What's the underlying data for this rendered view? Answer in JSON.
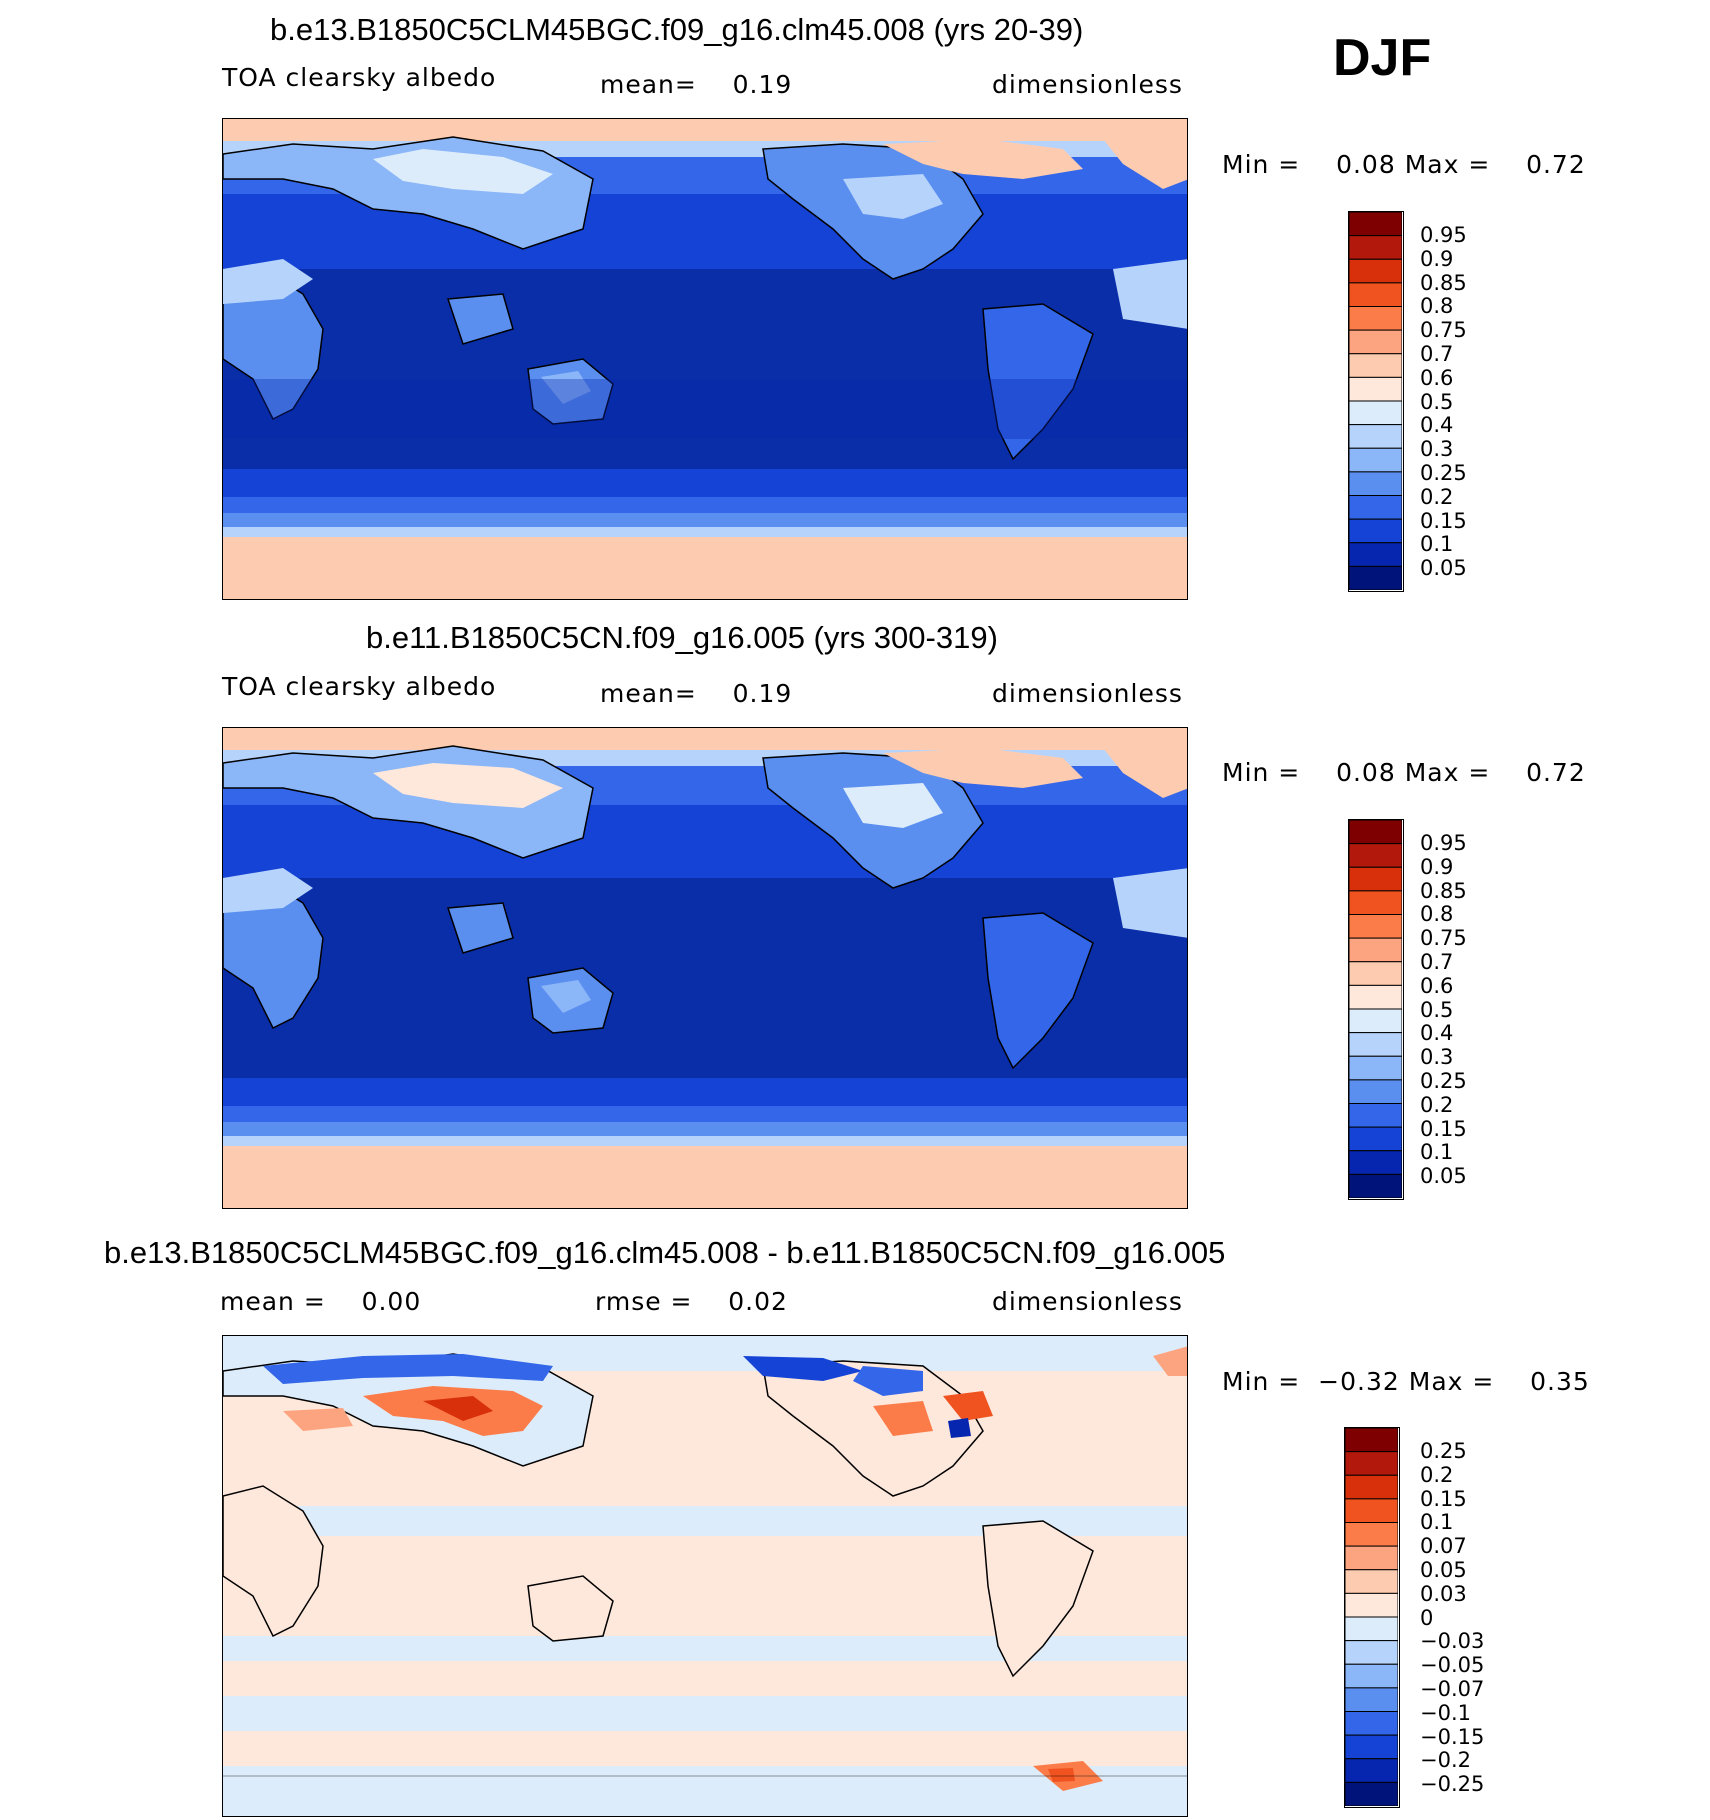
{
  "season": "DJF",
  "panels": [
    {
      "title": "b.e13.B1850C5CLM45BGC.f09_g16.clm45.008 (yrs 20-39)",
      "sub_left": "TOA clearsky albedo",
      "sub_mid": "mean=    0.19",
      "sub_right": "dimensionless",
      "min_label": "Min =",
      "min_value": "0.08",
      "max_label": "Max =",
      "max_value": "0.72"
    },
    {
      "title": "b.e11.B1850C5CN.f09_g16.005 (yrs 300-319)",
      "sub_left": "TOA clearsky albedo",
      "sub_mid": "mean=    0.19",
      "sub_right": "dimensionless",
      "min_label": "Min =",
      "min_value": "0.08",
      "max_label": "Max =",
      "max_value": "0.72"
    },
    {
      "title": "b.e13.B1850C5CLM45BGC.f09_g16.clm45.008 - b.e11.B1850C5CN.f09_g16.005",
      "sub_left": "mean =    0.00",
      "sub_mid": "rmse =    0.02",
      "sub_right": "dimensionless",
      "min_label": "Min =",
      "min_value": "−0.32",
      "max_label": "Max =",
      "max_value": "0.35"
    }
  ],
  "colorbars": {
    "absolute": {
      "labels": [
        "0.95",
        "0.9",
        "0.85",
        "0.8",
        "0.75",
        "0.7",
        "0.6",
        "0.5",
        "0.4",
        "0.3",
        "0.25",
        "0.2",
        "0.15",
        "0.1",
        "0.05"
      ],
      "colors": [
        "#7f0000",
        "#b2180b",
        "#d7300a",
        "#f0531f",
        "#fc7c49",
        "#fca47f",
        "#fdcbb0",
        "#fee8dc",
        "#dcecfb",
        "#b6d4fb",
        "#8bb6f8",
        "#5a8ff0",
        "#3366e8",
        "#1543d6",
        "#0626b0",
        "#00137a"
      ]
    },
    "difference": {
      "labels": [
        "0.25",
        "0.2",
        "0.15",
        "0.1",
        "0.07",
        "0.05",
        "0.03",
        "0",
        "−0.03",
        "−0.05",
        "−0.07",
        "−0.1",
        "−0.15",
        "−0.2",
        "−0.25"
      ],
      "colors": [
        "#7f0000",
        "#b2180b",
        "#d7300a",
        "#f0531f",
        "#fc7c49",
        "#fca47f",
        "#fdcbb0",
        "#fee8dc",
        "#dcecfb",
        "#b6d4fb",
        "#8bb6f8",
        "#5a8ff0",
        "#3366e8",
        "#1543d6",
        "#0626b0",
        "#00137a"
      ]
    }
  },
  "chart_data": [
    {
      "type": "heatmap",
      "title": "b.e13.B1850C5CLM45BGC.f09_g16.clm45.008 (yrs 20-39)",
      "variable": "TOA clearsky albedo",
      "units": "dimensionless",
      "mean": 0.19,
      "min": 0.08,
      "max": 0.72,
      "levels": [
        0.05,
        0.1,
        0.15,
        0.2,
        0.25,
        0.3,
        0.4,
        0.5,
        0.6,
        0.7,
        0.75,
        0.8,
        0.85,
        0.9,
        0.95
      ]
    },
    {
      "type": "heatmap",
      "title": "b.e11.B1850C5CN.f09_g16.005 (yrs 300-319)",
      "variable": "TOA clearsky albedo",
      "units": "dimensionless",
      "mean": 0.19,
      "min": 0.08,
      "max": 0.72,
      "levels": [
        0.05,
        0.1,
        0.15,
        0.2,
        0.25,
        0.3,
        0.4,
        0.5,
        0.6,
        0.7,
        0.75,
        0.8,
        0.85,
        0.9,
        0.95
      ]
    },
    {
      "type": "heatmap",
      "title": "b.e13.B1850C5CLM45BGC.f09_g16.clm45.008 - b.e11.B1850C5CN.f09_g16.005",
      "units": "dimensionless",
      "mean": 0.0,
      "rmse": 0.02,
      "min": -0.32,
      "max": 0.35,
      "levels": [
        -0.25,
        -0.2,
        -0.15,
        -0.1,
        -0.07,
        -0.05,
        -0.03,
        0,
        0.03,
        0.05,
        0.07,
        0.1,
        0.15,
        0.2,
        0.25
      ]
    }
  ]
}
